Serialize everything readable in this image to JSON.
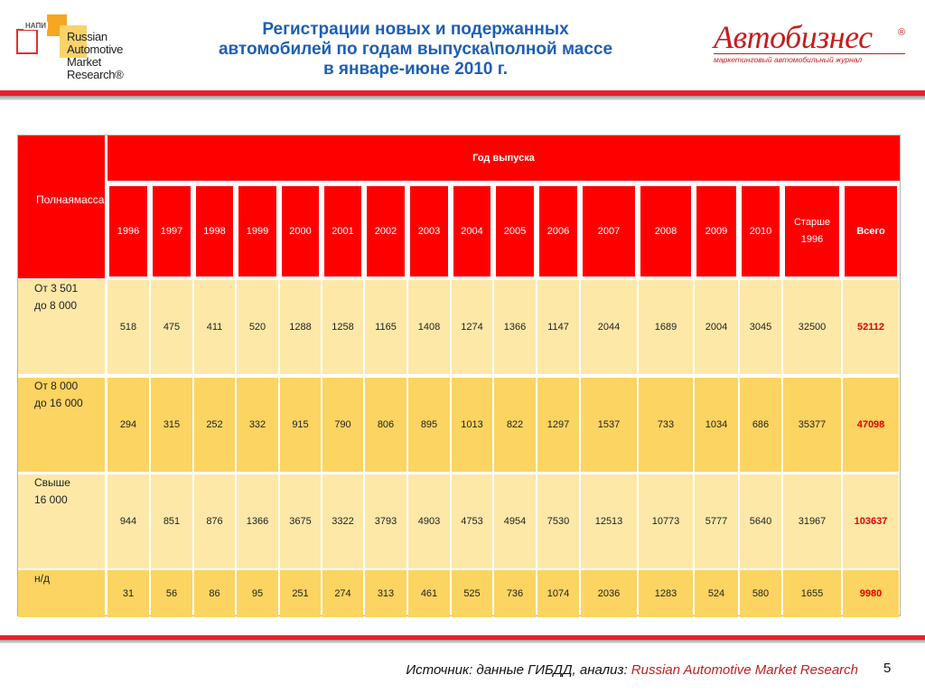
{
  "header": {
    "title_lines": [
      "Регистрации новых и подержанных",
      "автомобилей по годам выпуска\\полной массе",
      "в январе-июне 2010 г."
    ],
    "left_logo": {
      "badge": "НАПИ",
      "lines": [
        "Russian",
        "Automotive",
        "Market",
        "Research®"
      ]
    },
    "right_logo": {
      "brand": "Автобизнес",
      "registered": "®",
      "tagline": "маркетинговый автомобильный журнал"
    }
  },
  "table": {
    "corner_label_lines": [
      "Полная",
      "масса"
    ],
    "group_header": "Год выпуска",
    "columns": [
      "1996",
      "1997",
      "1998",
      "1999",
      "2000",
      "2001",
      "2002",
      "2003",
      "2004",
      "2005",
      "2006",
      "2007",
      "2008",
      "2009",
      "2010",
      "Старше 1996",
      "Всего"
    ],
    "rows": [
      {
        "label_lines": [
          "От 3 501",
          "до 8 000"
        ],
        "values": [
          "518",
          "475",
          "411",
          "520",
          "1288",
          "1258",
          "1165",
          "1408",
          "1274",
          "1366",
          "1147",
          "2044",
          "1689",
          "2004",
          "3045",
          "32500",
          "52112"
        ]
      },
      {
        "label_lines": [
          "От 8 000",
          "до 16 000"
        ],
        "values": [
          "294",
          "315",
          "252",
          "332",
          "915",
          "790",
          "806",
          "895",
          "1013",
          "822",
          "1297",
          "1537",
          "733",
          "1034",
          "686",
          "35377",
          "47098"
        ]
      },
      {
        "label_lines": [
          "Свыше",
          "16 000"
        ],
        "values": [
          "944",
          "851",
          "876",
          "1366",
          "3675",
          "3322",
          "3793",
          "4903",
          "4753",
          "4954",
          "7530",
          "12513",
          "10773",
          "5777",
          "5640",
          "31967",
          "103637"
        ]
      },
      {
        "label_lines": [
          "н/д"
        ],
        "values": [
          "31",
          "56",
          "86",
          "95",
          "251",
          "274",
          "313",
          "461",
          "525",
          "736",
          "1074",
          "2036",
          "1283",
          "524",
          "580",
          "1655",
          "9980"
        ]
      }
    ]
  },
  "footer": {
    "source_prefix": "Источник: данные ГИБДД, анализ: ",
    "source_highlight": "Russian Automotive Market Research",
    "page_number": "5"
  },
  "colors": {
    "title": "#1e5fb4",
    "header_red": "#ff0000",
    "row_light": "#fde8a8",
    "row_dark": "#fcd461",
    "total_text": "#e00000",
    "accent_band": "#e8202a"
  }
}
